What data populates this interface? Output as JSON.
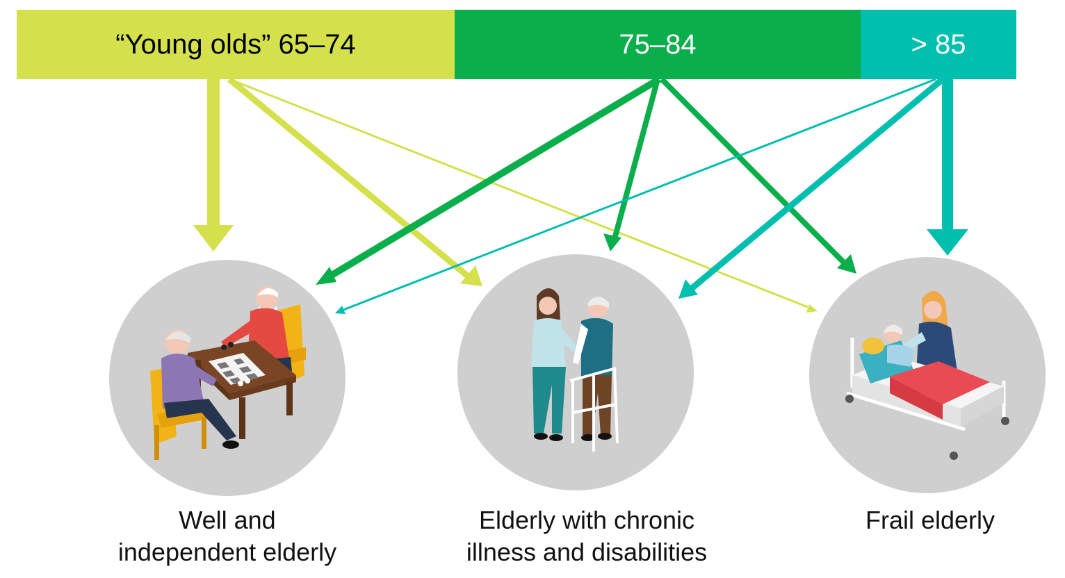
{
  "age_groups": [
    {
      "label": "“Young olds” 65–74",
      "color": "#d4e04c"
    },
    {
      "label": "75–84",
      "color": "#0aae4b"
    },
    {
      "label": "> 85",
      "color": "#00bfae"
    }
  ],
  "categories": [
    {
      "line1": "Well and",
      "line2": "independent elderly",
      "icon": "chess-playing-seniors-icon"
    },
    {
      "line1": "Elderly with chronic",
      "line2": "illness and disabilities",
      "icon": "caregiver-walker-icon"
    },
    {
      "line1": "Frail elderly",
      "line2": "",
      "icon": "hospital-bed-care-icon"
    }
  ]
}
